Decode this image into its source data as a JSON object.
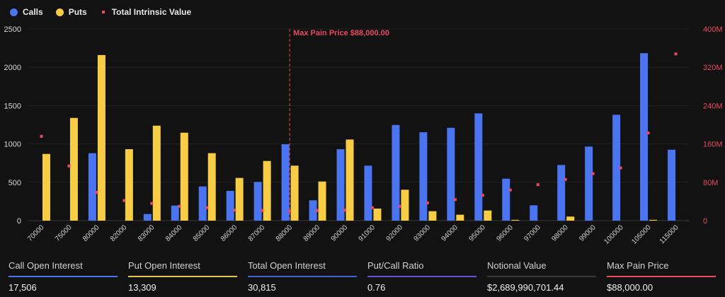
{
  "legend": {
    "calls": "Calls",
    "puts": "Puts",
    "intrinsic": "Total Intrinsic Value"
  },
  "colors": {
    "calls": "#4a74f0",
    "puts": "#f7cd45",
    "intrinsic": "#e84a5f",
    "max_pain": "#e84a5f",
    "background": "#121212"
  },
  "chart_data": {
    "type": "bar",
    "categories": [
      "70000",
      "75000",
      "80000",
      "82000",
      "83000",
      "84000",
      "85000",
      "86000",
      "87000",
      "88000",
      "89000",
      "90000",
      "91000",
      "92000",
      "93000",
      "94000",
      "95000",
      "96000",
      "97000",
      "98000",
      "99000",
      "100000",
      "105000",
      "115000"
    ],
    "series": [
      {
        "name": "Calls",
        "axis": "left",
        "values": [
          0,
          0,
          880,
          0,
          86,
          197,
          446,
          388,
          505,
          996,
          265,
          932,
          717,
          1248,
          1153,
          1211,
          1399,
          547,
          200,
          726,
          966,
          1381,
          2184,
          925
        ]
      },
      {
        "name": "Puts",
        "axis": "left",
        "values": [
          870,
          1340,
          2160,
          932,
          1239,
          1147,
          880,
          557,
          778,
          717,
          510,
          1058,
          157,
          403,
          123,
          77,
          132,
          10,
          0,
          53,
          0,
          0,
          10,
          0
        ]
      },
      {
        "name": "Total Intrinsic Value",
        "axis": "right",
        "type": "scatter",
        "values": [
          176000000,
          114000000,
          59000000,
          42000000,
          36000000,
          30000000,
          27000000,
          22000000,
          21000000,
          20000000,
          21000000,
          22000000,
          27000000,
          30000000,
          37000000,
          44000000,
          53000000,
          64000000,
          75000000,
          86000000,
          98000000,
          110000000,
          183000000,
          348000000
        ]
      }
    ],
    "ylim": [
      0,
      2500
    ],
    "yticks": [
      "0",
      "500",
      "1000",
      "1500",
      "2000",
      "2500"
    ],
    "y2lim": [
      0,
      400000000
    ],
    "y2ticks": [
      "0",
      "80M",
      "160M",
      "240M",
      "320M",
      "400M"
    ],
    "grid": true,
    "legend_position": "top-left",
    "annotation": {
      "category": "88000",
      "label": "Max Pain Price $88,000.00"
    }
  },
  "stats": [
    {
      "label": "Call Open Interest",
      "value": "17,506",
      "color": "#4a74f0"
    },
    {
      "label": "Put Open Interest",
      "value": "13,309",
      "color": "#e0c84a"
    },
    {
      "label": "Total Open Interest",
      "value": "30,815",
      "color": "#3f64d0"
    },
    {
      "label": "Put/Call Ratio",
      "value": "0.76",
      "color": "#6a4fd8"
    },
    {
      "label": "Notional Value",
      "value": "$2,689,990,701.44",
      "color": "#3a3a3a"
    },
    {
      "label": "Max Pain Price",
      "value": "$88,000.00",
      "color": "#e84a5f"
    }
  ]
}
